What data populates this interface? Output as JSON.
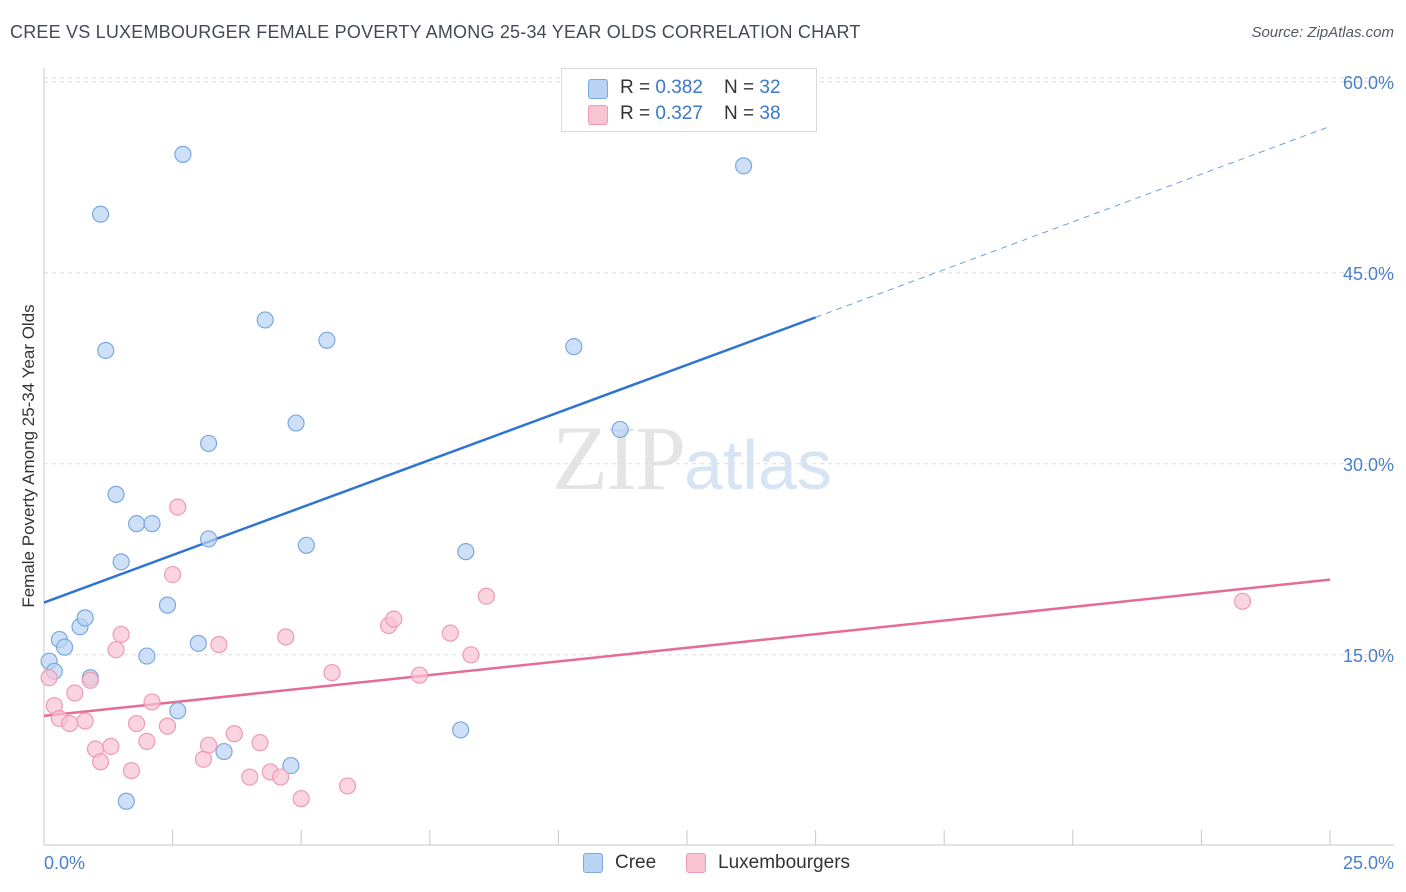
{
  "title": "CREE VS LUXEMBOURGER FEMALE POVERTY AMONG 25-34 YEAR OLDS CORRELATION CHART",
  "source": "Source: ZipAtlas.com",
  "watermark": {
    "zip": "ZIP",
    "atlas": "atlas"
  },
  "legend": {
    "cree": {
      "r_label": "R = ",
      "r_value": "0.382",
      "n_label": "N = ",
      "n_value": "32"
    },
    "lux": {
      "r_label": "R = ",
      "r_value": "0.327",
      "n_label": "N = ",
      "n_value": "38"
    }
  },
  "bottom_legend": {
    "cree": "Cree",
    "lux": "Luxembourgers"
  },
  "colors": {
    "cree_fill": "#b8d3f3",
    "cree_stroke": "#7aa8e0",
    "cree_line": "#2f74d0",
    "lux_fill": "#f8c3d3",
    "lux_stroke": "#ee9ab5",
    "lux_line": "#e46c96",
    "tick_text": "#4a7fc9",
    "grid": "#dcdcdc"
  },
  "chart_data": {
    "type": "scatter",
    "title": "CREE VS LUXEMBOURGER FEMALE POVERTY AMONG 25-34 YEAR OLDS CORRELATION CHART",
    "xlabel": "",
    "ylabel": "Female Poverty Among 25-34 Year Olds",
    "xlim": [
      0,
      25
    ],
    "ylim": [
      0,
      63
    ],
    "x_tick_labels": [
      "0.0%",
      "25.0%"
    ],
    "y_ticks": [
      15,
      30,
      45,
      60
    ],
    "y_tick_labels": [
      "15.0%",
      "30.0%",
      "45.0%",
      "60.0%"
    ],
    "grid": "horizontal dashed",
    "legend_position": "top-center",
    "series": [
      {
        "name": "Cree",
        "points": [
          [
            0.1,
            14.5
          ],
          [
            0.3,
            16.2
          ],
          [
            0.4,
            15.6
          ],
          [
            0.7,
            17.2
          ],
          [
            0.8,
            17.9
          ],
          [
            0.9,
            13.2
          ],
          [
            1.1,
            49.6
          ],
          [
            1.2,
            38.9
          ],
          [
            1.4,
            27.6
          ],
          [
            1.5,
            22.3
          ],
          [
            1.8,
            25.3
          ],
          [
            2.0,
            14.9
          ],
          [
            2.1,
            25.3
          ],
          [
            2.4,
            18.9
          ],
          [
            2.6,
            10.6
          ],
          [
            2.7,
            54.3
          ],
          [
            3.0,
            15.9
          ],
          [
            3.2,
            31.6
          ],
          [
            3.2,
            24.1
          ],
          [
            3.5,
            7.4
          ],
          [
            4.3,
            41.3
          ],
          [
            4.8,
            6.3
          ],
          [
            4.9,
            33.2
          ],
          [
            5.1,
            23.6
          ],
          [
            5.5,
            39.7
          ],
          [
            8.1,
            9.1
          ],
          [
            8.2,
            23.1
          ],
          [
            10.3,
            39.2
          ],
          [
            11.2,
            32.7
          ],
          [
            13.6,
            53.4
          ],
          [
            0.2,
            13.7
          ],
          [
            1.6,
            3.5
          ]
        ]
      },
      {
        "name": "Luxembourgers",
        "points": [
          [
            0.1,
            13.2
          ],
          [
            0.2,
            11.0
          ],
          [
            0.3,
            10.0
          ],
          [
            0.5,
            9.6
          ],
          [
            0.6,
            12.0
          ],
          [
            0.8,
            9.8
          ],
          [
            0.9,
            13.0
          ],
          [
            1.0,
            7.6
          ],
          [
            1.1,
            6.6
          ],
          [
            1.3,
            7.8
          ],
          [
            1.4,
            15.4
          ],
          [
            1.5,
            16.6
          ],
          [
            1.7,
            5.9
          ],
          [
            1.8,
            9.6
          ],
          [
            2.0,
            8.2
          ],
          [
            2.1,
            11.3
          ],
          [
            2.4,
            9.4
          ],
          [
            2.5,
            21.3
          ],
          [
            2.6,
            26.6
          ],
          [
            3.1,
            6.8
          ],
          [
            3.2,
            7.9
          ],
          [
            3.4,
            15.8
          ],
          [
            3.7,
            8.8
          ],
          [
            4.0,
            5.4
          ],
          [
            4.2,
            8.1
          ],
          [
            4.4,
            5.8
          ],
          [
            4.6,
            5.4
          ],
          [
            4.7,
            16.4
          ],
          [
            5.0,
            3.7
          ],
          [
            5.6,
            13.6
          ],
          [
            5.9,
            4.7
          ],
          [
            6.7,
            17.3
          ],
          [
            6.8,
            17.8
          ],
          [
            7.3,
            13.4
          ],
          [
            7.9,
            16.7
          ],
          [
            8.3,
            15.0
          ],
          [
            8.6,
            19.6
          ],
          [
            23.3,
            19.2
          ]
        ]
      }
    ],
    "trend_lines": [
      {
        "name": "Cree",
        "x": [
          0,
          15
        ],
        "y": [
          19.1,
          41.5
        ],
        "dashed_extension": [
          15,
          25
        ],
        "dashed_y_end": 56.5
      },
      {
        "name": "Luxembourgers",
        "x": [
          0,
          25
        ],
        "y": [
          10.2,
          20.9
        ]
      }
    ]
  }
}
